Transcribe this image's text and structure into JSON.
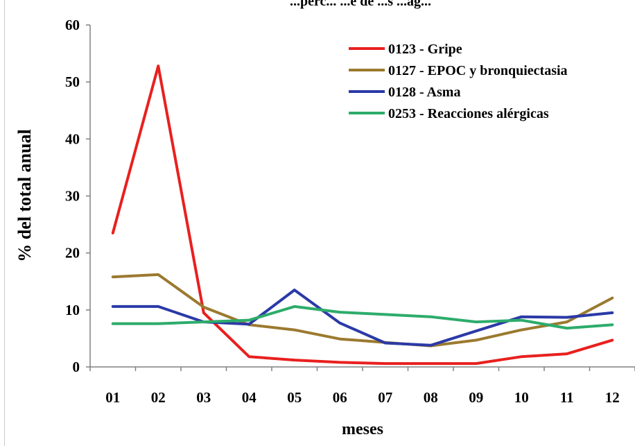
{
  "chart_data": {
    "type": "line",
    "title": "...perc... ...e de ...s ...ag...",
    "xlabel": "meses",
    "ylabel": "% del total anual",
    "categories": [
      "01",
      "02",
      "03",
      "04",
      "05",
      "06",
      "07",
      "08",
      "09",
      "10",
      "11",
      "12"
    ],
    "ylim": [
      0,
      60
    ],
    "yticks": [
      0,
      10,
      20,
      30,
      40,
      50,
      60
    ],
    "grid": false,
    "legend_position": "top-right",
    "series": [
      {
        "name": "0123 - Gripe",
        "color": "#e8201e",
        "values": [
          23.5,
          52.8,
          9.5,
          1.8,
          1.2,
          0.8,
          0.6,
          0.6,
          0.6,
          1.8,
          2.3,
          4.7
        ]
      },
      {
        "name": "0127 - EPOC y bronquiectasia",
        "color": "#9b7a2f",
        "values": [
          15.8,
          16.2,
          10.5,
          7.4,
          6.5,
          4.9,
          4.3,
          3.7,
          4.7,
          6.5,
          7.9,
          12.1
        ]
      },
      {
        "name": "0128 - Asma",
        "color": "#2b3aa6",
        "values": [
          10.6,
          10.6,
          7.9,
          7.5,
          13.5,
          7.7,
          4.2,
          3.8,
          6.3,
          8.8,
          8.7,
          9.5
        ]
      },
      {
        "name": "0253 - Reacciones alérgicas",
        "color": "#2dac6b",
        "values": [
          7.6,
          7.6,
          7.9,
          8.2,
          10.6,
          9.6,
          9.2,
          8.8,
          7.9,
          8.2,
          6.8,
          7.4
        ]
      }
    ]
  }
}
